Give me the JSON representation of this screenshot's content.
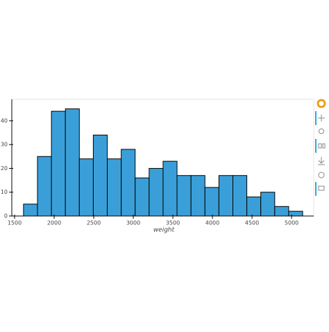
{
  "chart_data": {
    "type": "histogram",
    "x_label": "weight",
    "bins": [
      1613,
      1789.35,
      1965.7,
      2142.05,
      2318.4,
      2494.75,
      2671.1,
      2847.45,
      3023.8,
      3200.15,
      3376.5,
      3552.85,
      3729.2,
      3905.55,
      4081.9,
      4258.25,
      4434.6,
      4610.95,
      4787.3,
      4963.65,
      5140
    ],
    "values": [
      5,
      25,
      44,
      45,
      24,
      34,
      24,
      28,
      16,
      20,
      23,
      17,
      17,
      12,
      17,
      17,
      8,
      10,
      4,
      2
    ],
    "color": "#3a9fd8",
    "xlim": [
      1465,
      5280
    ],
    "xticks": [
      1500,
      2000,
      2500,
      3000,
      3500,
      4000,
      4500,
      5000
    ],
    "ylim": [
      0,
      49
    ],
    "yticks": [
      0,
      10,
      20,
      30,
      40
    ]
  }
}
